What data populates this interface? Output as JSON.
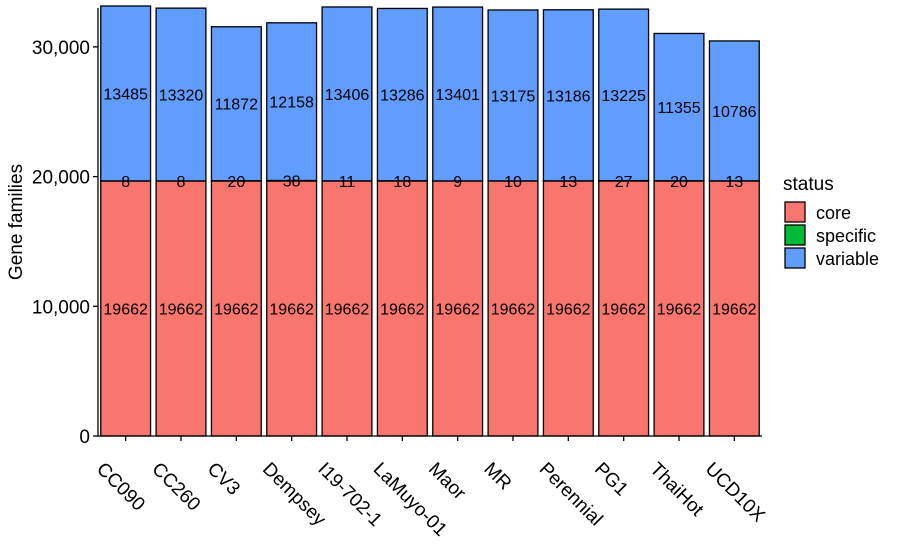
{
  "chart_data": {
    "type": "bar",
    "stacked": true,
    "ylabel": "Gene families",
    "xlabel": "",
    "ylim": [
      0,
      33000
    ],
    "y_ticks": [
      0,
      10000,
      20000,
      30000
    ],
    "y_tick_labels": [
      "0",
      "10,000",
      "20,000",
      "30,000"
    ],
    "categories": [
      "CC090",
      "CC260",
      "CV3",
      "Dempsey",
      "I19-702-1",
      "LaMuyo-01",
      "Maor",
      "MR",
      "Perennial",
      "PG1",
      "ThaiHot",
      "UCD10X"
    ],
    "series": [
      {
        "name": "core",
        "color": "#F8766D",
        "values": [
          19662,
          19662,
          19662,
          19662,
          19662,
          19662,
          19662,
          19662,
          19662,
          19662,
          19662,
          19662
        ]
      },
      {
        "name": "specific",
        "color": "#00BA38",
        "values": [
          8,
          8,
          20,
          38,
          11,
          18,
          9,
          10,
          13,
          27,
          20,
          13
        ]
      },
      {
        "name": "variable",
        "color": "#619CFF",
        "values": [
          13485,
          13320,
          11872,
          12158,
          13406,
          13286,
          13401,
          13175,
          13186,
          13225,
          11355,
          10786
        ]
      }
    ],
    "legend": {
      "title": "status",
      "position": "right"
    }
  }
}
